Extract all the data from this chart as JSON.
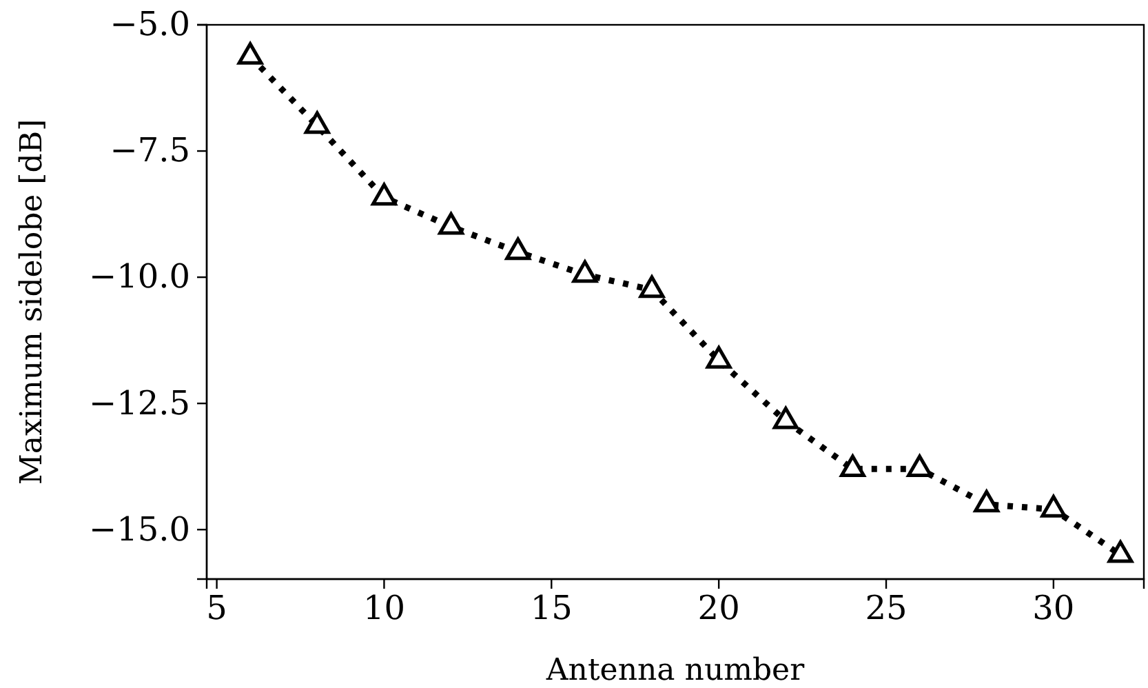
{
  "chart_data": {
    "type": "line",
    "xlabel": "Antenna number",
    "ylabel": "Maximum sidelobe [dB]",
    "x": [
      6,
      8,
      10,
      12,
      14,
      16,
      18,
      20,
      22,
      24,
      26,
      28,
      30,
      32
    ],
    "series": [
      {
        "color": "#000000",
        "values": [
          -5.63,
          -7.0,
          -8.42,
          -9.0,
          -9.5,
          -9.95,
          -10.25,
          -11.65,
          -12.85,
          -13.8,
          -13.8,
          -14.5,
          -14.6,
          -15.5
        ]
      }
    ],
    "xlim": [
      4.7,
      32.7
    ],
    "ylim": [
      -15.98,
      -5.0
    ],
    "xticks": [
      5,
      10,
      15,
      20,
      25,
      30
    ],
    "yticks": [
      {
        "value": -5,
        "label": "−5.0"
      },
      {
        "value": -7.5,
        "label": "−7.5"
      },
      {
        "value": -10,
        "label": "−10.0"
      },
      {
        "value": -12.5,
        "label": "−12.5"
      },
      {
        "value": -15,
        "label": "−15.0"
      }
    ],
    "marker": "triangle",
    "line_style": "dotted",
    "grid": false
  }
}
